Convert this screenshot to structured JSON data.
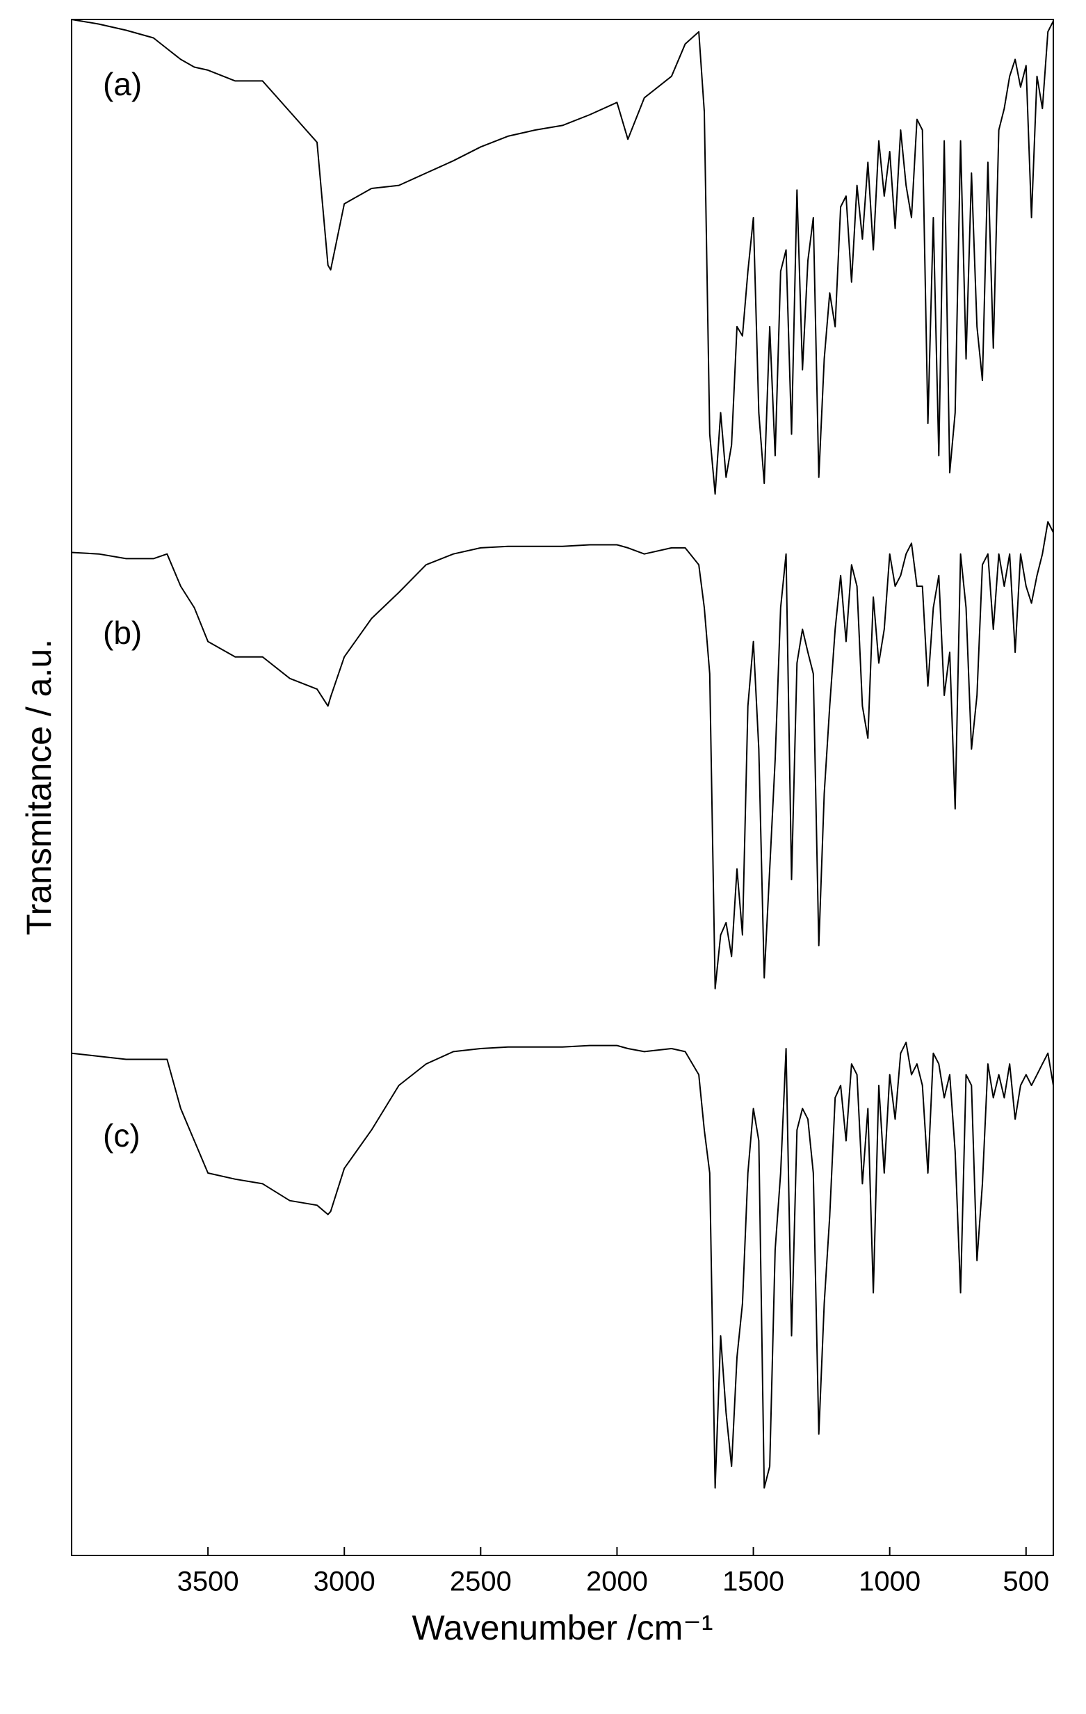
{
  "chart_data": {
    "type": "line",
    "xlabel": "Wavenumber /cm⁻¹",
    "ylabel": "Transmitance / a.u.",
    "xlim": [
      4000,
      400
    ],
    "ylim": [
      0,
      100
    ],
    "xticks": [
      3500,
      3000,
      2500,
      2000,
      1500,
      1000,
      500
    ],
    "grid": false,
    "x": [
      4000,
      3900,
      3800,
      3700,
      3650,
      3600,
      3550,
      3500,
      3400,
      3300,
      3200,
      3100,
      3060,
      3050,
      3000,
      2900,
      2800,
      2700,
      2600,
      2500,
      2400,
      2300,
      2200,
      2100,
      2000,
      1960,
      1900,
      1800,
      1750,
      1700,
      1680,
      1660,
      1640,
      1620,
      1600,
      1580,
      1560,
      1540,
      1520,
      1500,
      1480,
      1460,
      1440,
      1420,
      1400,
      1380,
      1360,
      1340,
      1320,
      1300,
      1280,
      1260,
      1240,
      1220,
      1200,
      1180,
      1160,
      1140,
      1120,
      1100,
      1080,
      1060,
      1040,
      1020,
      1000,
      980,
      960,
      940,
      920,
      900,
      880,
      860,
      840,
      820,
      800,
      780,
      760,
      740,
      720,
      700,
      680,
      660,
      640,
      620,
      600,
      580,
      560,
      540,
      520,
      500,
      480,
      460,
      440,
      420,
      400
    ],
    "series": [
      {
        "name": "(a)",
        "color": "#000000",
        "values": [
          100,
          99.7,
          99.3,
          98.8,
          98.1,
          97.4,
          96.9,
          96.7,
          96,
          96,
          94,
          92,
          84,
          83.7,
          88,
          89,
          89.2,
          90,
          90.8,
          91.7,
          92.4,
          92.8,
          93.1,
          93.8,
          94.6,
          92.2,
          94.9,
          96.3,
          98.4,
          99.2,
          94,
          73,
          69.1,
          74.4,
          70.2,
          72.3,
          80,
          79.4,
          83.6,
          87.1,
          74.4,
          69.8,
          80,
          71.6,
          83.6,
          85,
          73,
          88.9,
          77.2,
          84.3,
          87.1,
          70.2,
          77.9,
          82.2,
          80,
          87.8,
          88.5,
          82.9,
          89.2,
          85.7,
          90.7,
          85,
          92.1,
          88.5,
          91.4,
          86.4,
          92.8,
          89.2,
          87.1,
          93.5,
          92.8,
          73.7,
          87.1,
          71.6,
          92.1,
          70.5,
          74.4,
          92.1,
          77.9,
          90,
          80,
          76.5,
          90.7,
          78.6,
          92.8,
          94.2,
          96.3,
          97.4,
          95.6,
          97,
          87.1,
          96.3,
          94.2,
          99.2,
          99.9
        ]
      },
      {
        "name": "(b)",
        "color": "#000000",
        "values": [
          65.3,
          65.2,
          64.9,
          64.9,
          65.2,
          63.1,
          61.7,
          59.5,
          58.5,
          58.5,
          57.1,
          56.4,
          55.3,
          55.9,
          58.5,
          61,
          62.7,
          64.5,
          65.2,
          65.6,
          65.7,
          65.7,
          65.7,
          65.8,
          65.8,
          65.6,
          65.2,
          65.6,
          65.6,
          64.5,
          61.7,
          57.4,
          36.9,
          40.4,
          41.2,
          39,
          44.7,
          40.4,
          55.3,
          59.5,
          52.5,
          37.6,
          44.7,
          51.8,
          61.7,
          65.2,
          44,
          58.1,
          60.3,
          58.8,
          57.4,
          39.7,
          49.6,
          55.3,
          60.3,
          63.8,
          59.5,
          64.5,
          63.1,
          55.3,
          53.2,
          62.4,
          58.1,
          60.3,
          65.2,
          63.1,
          63.8,
          65.2,
          65.9,
          63.1,
          63.1,
          56.6,
          61.7,
          63.8,
          56,
          58.8,
          48.6,
          65.2,
          61.7,
          52.5,
          56,
          64.5,
          65.2,
          60.3,
          65.2,
          63.1,
          65.2,
          58.8,
          65.2,
          63.1,
          62,
          63.8,
          65.2,
          67.3,
          66.6
        ]
      },
      {
        "name": "(c)",
        "color": "#000000",
        "values": [
          32.7,
          32.5,
          32.3,
          32.3,
          32.3,
          29.1,
          27,
          24.9,
          24.5,
          24.2,
          23.1,
          22.8,
          22.2,
          22.4,
          25.2,
          27.7,
          30.6,
          32,
          32.8,
          33,
          33.1,
          33.1,
          33.1,
          33.2,
          33.2,
          33,
          32.8,
          33,
          32.8,
          31.3,
          27.7,
          24.9,
          4.4,
          14.3,
          9.3,
          5.8,
          12.9,
          16.4,
          24.9,
          29.1,
          27,
          4.4,
          5.8,
          19.9,
          24.9,
          33,
          14.3,
          27.7,
          29.1,
          28.4,
          24.9,
          7.9,
          16.4,
          22.1,
          29.8,
          30.6,
          27,
          32,
          31.3,
          24.2,
          29.1,
          17.1,
          30.6,
          24.9,
          31.3,
          28.4,
          32.7,
          33.4,
          31.3,
          32,
          30.6,
          24.9,
          32.7,
          32,
          29.8,
          31.3,
          26.3,
          17.1,
          31.3,
          30.6,
          19.2,
          24.2,
          32,
          29.8,
          31.3,
          29.8,
          32,
          28.4,
          30.6,
          31.3,
          30.6,
          31.3,
          32,
          32.7,
          30.6
        ]
      }
    ]
  }
}
